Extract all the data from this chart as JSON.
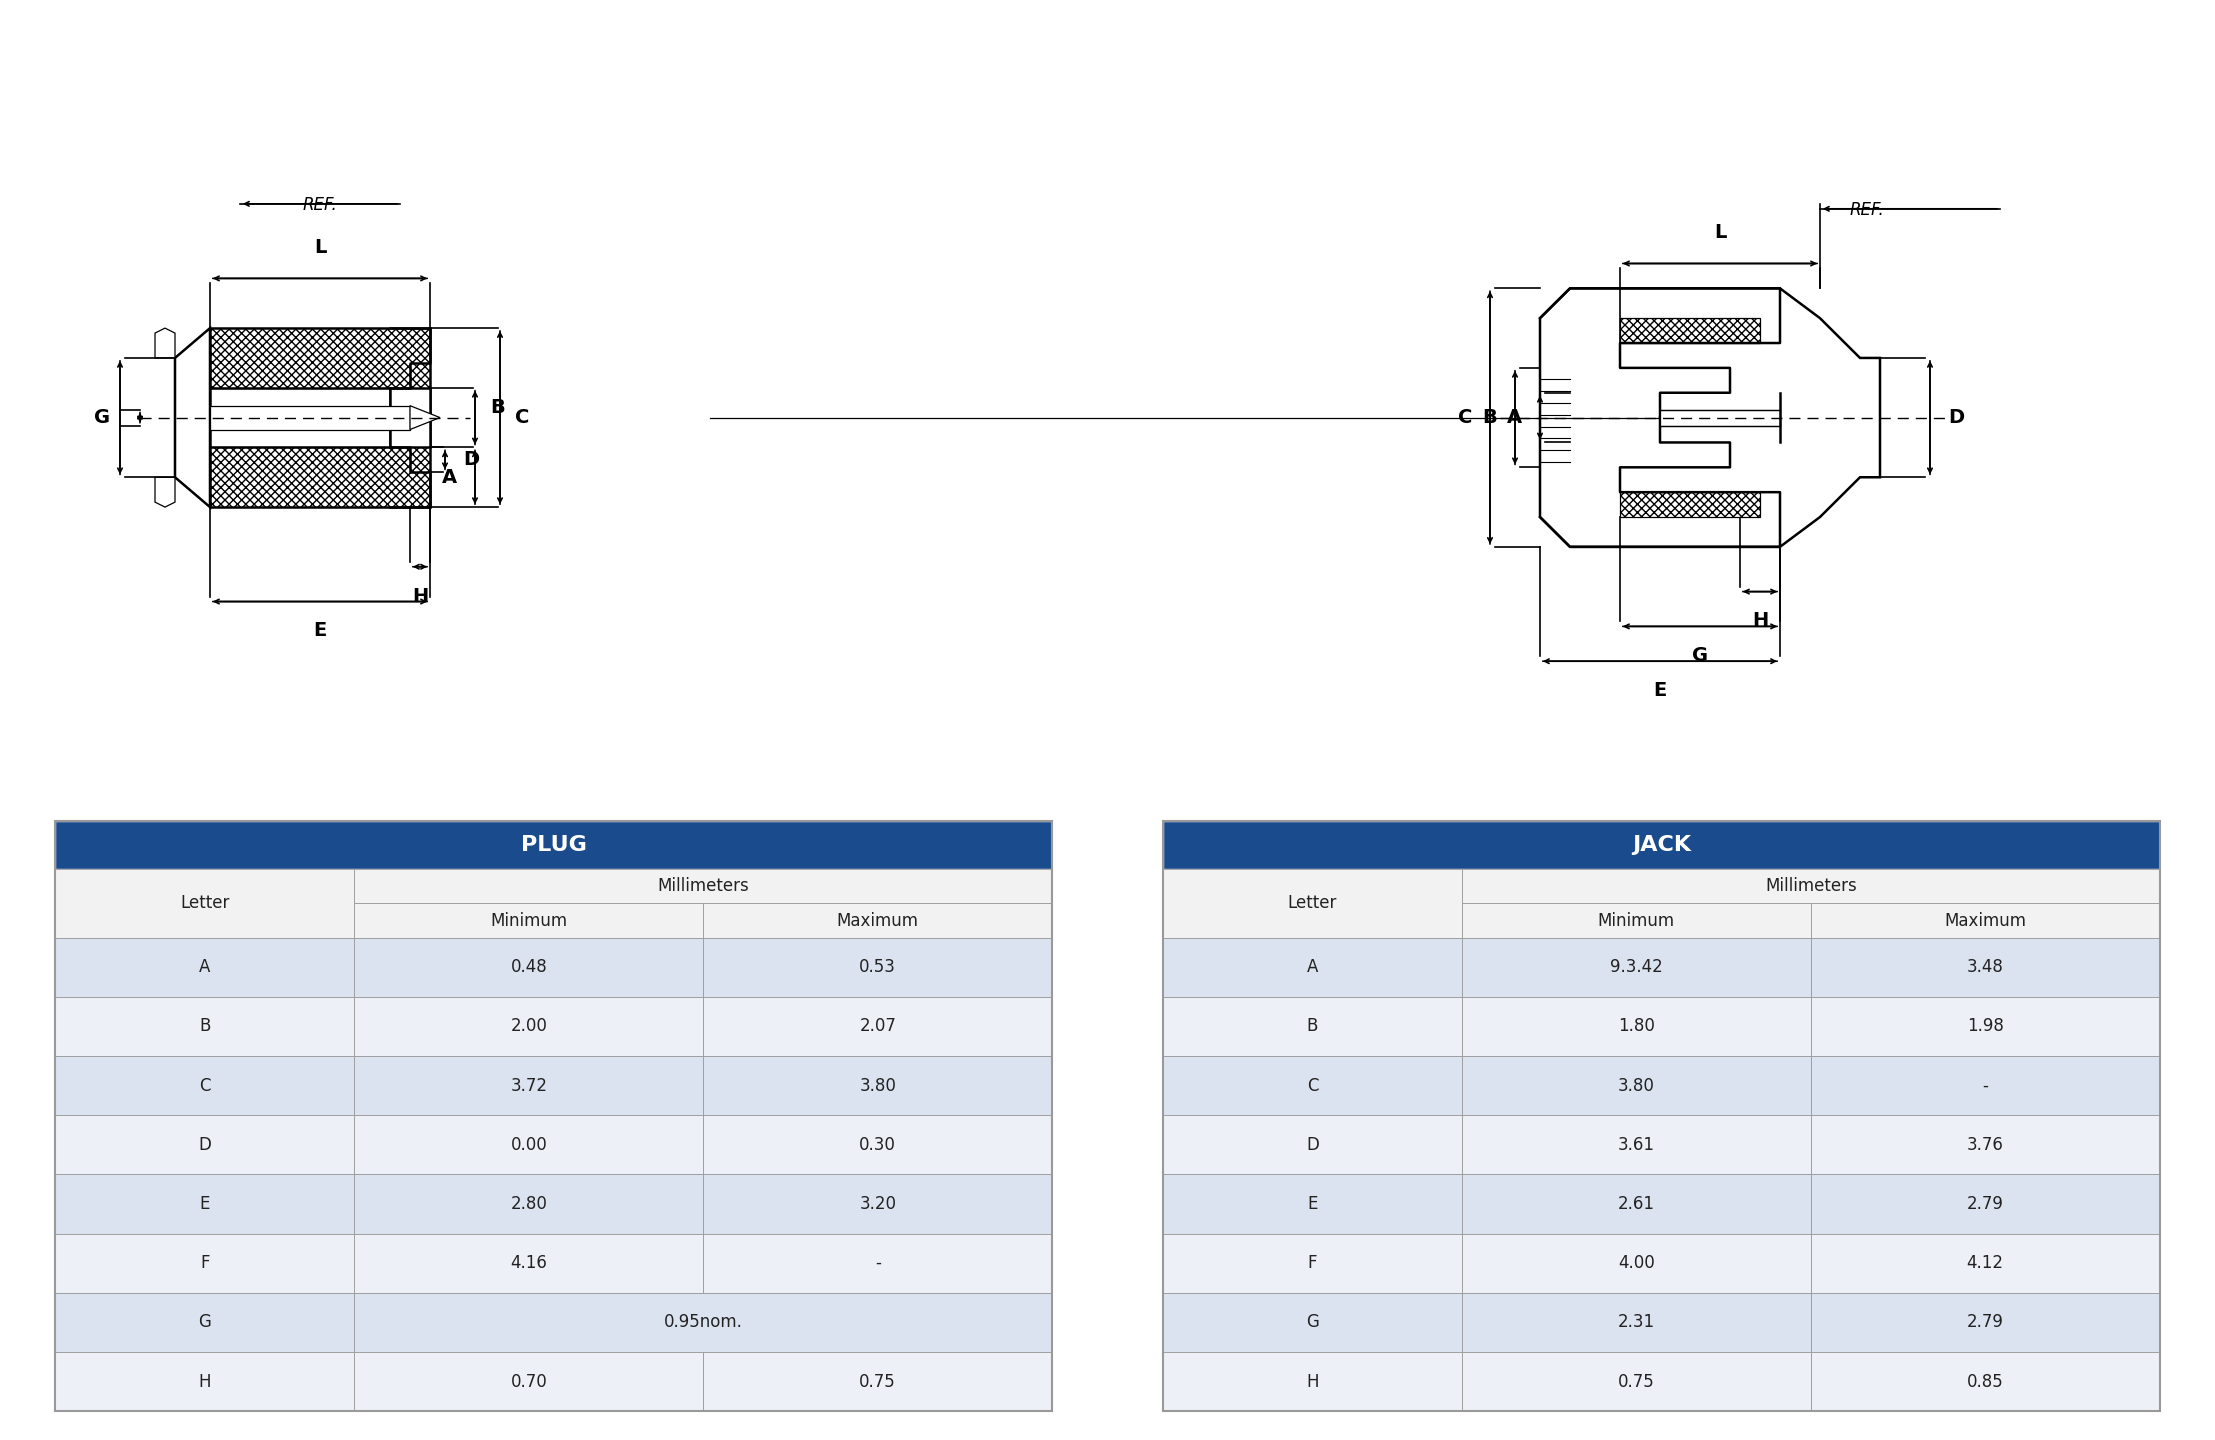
{
  "plug_table": {
    "title": "PLUG",
    "header_color": "#1a4b8c",
    "header_text_color": "#ffffff",
    "col_header": "Millimeters",
    "col1": "Letter",
    "col2": "Minimum",
    "col3": "Maximum",
    "rows": [
      [
        "A",
        "0.48",
        "0.53"
      ],
      [
        "B",
        "2.00",
        "2.07"
      ],
      [
        "C",
        "3.72",
        "3.80"
      ],
      [
        "D",
        "0.00",
        "0.30"
      ],
      [
        "E",
        "2.80",
        "3.20"
      ],
      [
        "F",
        "4.16",
        "-"
      ],
      [
        "G",
        "0.95nom.",
        ""
      ],
      [
        "H",
        "0.70",
        "0.75"
      ]
    ]
  },
  "jack_table": {
    "title": "JACK",
    "header_color": "#1a4b8c",
    "header_text_color": "#ffffff",
    "col_header": "Millimeters",
    "col1": "Letter",
    "col2": "Minimum",
    "col3": "Maximum",
    "rows": [
      [
        "A",
        "9.3.42",
        "3.48"
      ],
      [
        "B",
        "1.80",
        "1.98"
      ],
      [
        "C",
        "3.80",
        "-"
      ],
      [
        "D",
        "3.61",
        "3.76"
      ],
      [
        "E",
        "2.61",
        "2.79"
      ],
      [
        "F",
        "4.00",
        "4.12"
      ],
      [
        "G",
        "2.31",
        "2.79"
      ],
      [
        "H",
        "0.75",
        "0.85"
      ]
    ]
  },
  "row_colors": [
    "#dce3f0",
    "#eef0f7"
  ],
  "border_color": "#999999",
  "text_color": "#222222",
  "white": "#ffffff",
  "light_gray": "#eeeeee",
  "mid_gray": "#cccccc",
  "dark_gray": "#aaaaaa"
}
